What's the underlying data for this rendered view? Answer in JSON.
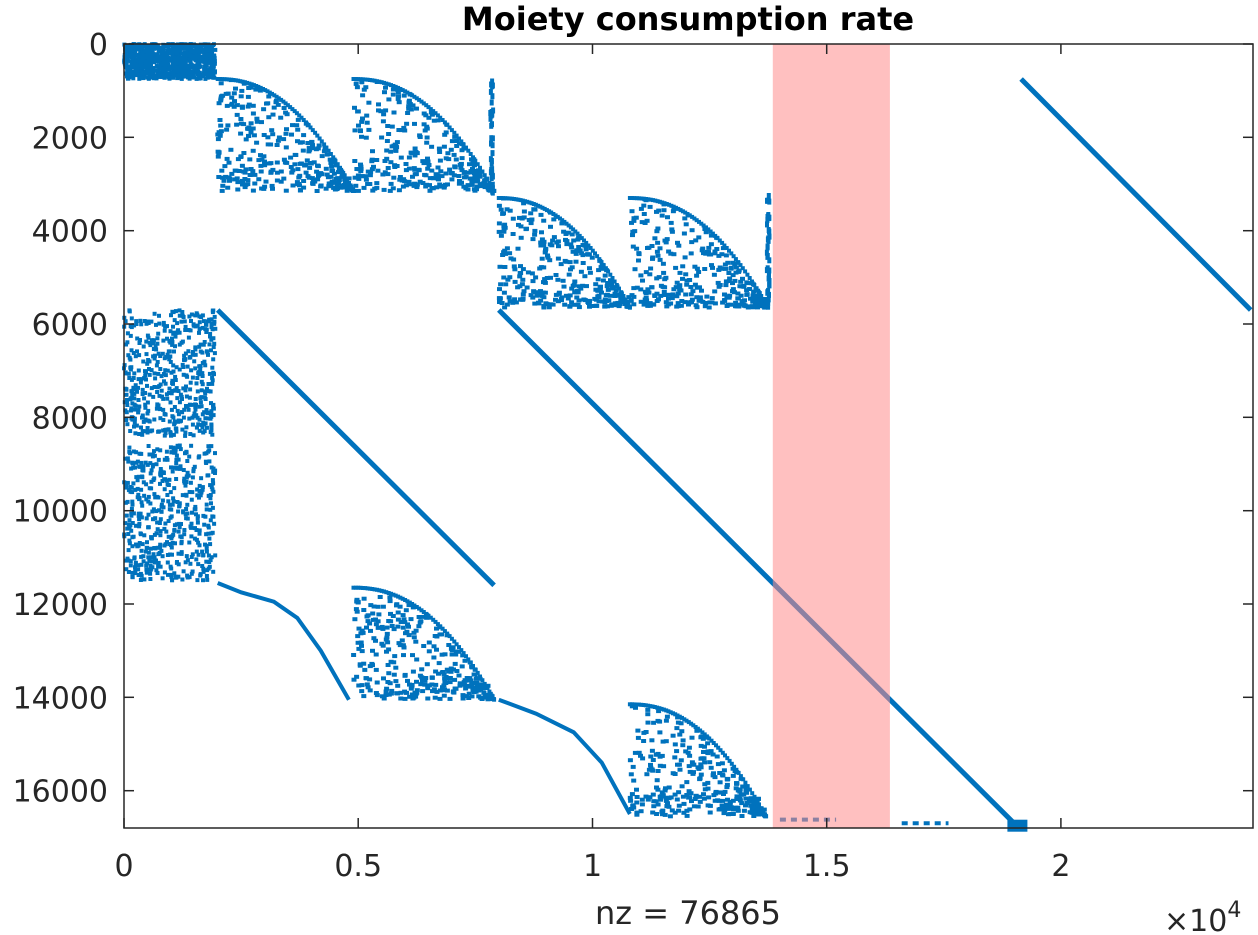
{
  "chart_data": {
    "type": "scatter",
    "subtype": "sparsity-pattern",
    "title": "Moiety consumption rate",
    "xlabel": "nz = 76865",
    "x_exponent": "×10",
    "x_exponent_power": "4",
    "xlim": [
      0,
      24100
    ],
    "ylim": [
      0,
      16800
    ],
    "y_reversed": true,
    "grid": false,
    "x_ticks": [
      0,
      5000,
      10000,
      15000,
      20000
    ],
    "x_tick_labels": [
      "0",
      "0.5",
      "1",
      "1.5",
      "2"
    ],
    "y_ticks": [
      0,
      2000,
      4000,
      6000,
      8000,
      10000,
      12000,
      14000,
      16000
    ],
    "y_tick_labels": [
      "0",
      "2000",
      "4000",
      "6000",
      "8000",
      "10000",
      "12000",
      "14000",
      "16000"
    ],
    "colors": {
      "points": "#0072bd",
      "highlight": "#ff8c8c",
      "axes": "#262626"
    },
    "highlight_band": {
      "x_start": 13850,
      "x_end": 16350,
      "opacity": 0.55
    },
    "diagonals": [
      {
        "x0": 2000,
        "y0": 5700,
        "x1": 7900,
        "y1": 11600
      },
      {
        "x0": 8000,
        "y0": 5700,
        "x1": 19000,
        "y1": 16700
      },
      {
        "x0": 19150,
        "y0": 750,
        "x1": 24050,
        "y1": 5700
      }
    ],
    "curves": [
      {
        "x": [
          2000,
          2500,
          3200,
          3700,
          4200,
          4800
        ],
        "y": [
          11550,
          11750,
          11950,
          12300,
          13000,
          14050
        ]
      },
      {
        "x": [
          8000,
          8800,
          9600,
          10200,
          10800
        ],
        "y": [
          14050,
          14350,
          14750,
          15400,
          16500
        ]
      }
    ],
    "triangles": [
      {
        "x0": 2000,
        "x1": 4900,
        "y_top": 750,
        "y_bottom": 3150
      },
      {
        "x0": 4900,
        "x1": 7900,
        "y_top": 750,
        "y_bottom": 3150
      },
      {
        "x0": 8000,
        "x1": 10800,
        "y_top": 3300,
        "y_bottom": 5650
      },
      {
        "x0": 10800,
        "x1": 13750,
        "y_top": 3300,
        "y_bottom": 5650
      },
      {
        "x0": 4900,
        "x1": 7900,
        "y_top": 11650,
        "y_bottom": 14050
      },
      {
        "x0": 10800,
        "x1": 13700,
        "y_top": 14150,
        "y_bottom": 16550
      }
    ],
    "dense_blocks": [
      {
        "x0": 0,
        "x1": 1950,
        "y0": 0,
        "y1": 750,
        "n": 900
      },
      {
        "x0": 0,
        "x1": 1950,
        "y0": 5700,
        "y1": 8400,
        "n": 500
      },
      {
        "x0": 0,
        "x1": 1950,
        "y0": 8600,
        "y1": 11500,
        "n": 500
      }
    ],
    "vertical_streaks": [
      {
        "x": 7850,
        "y0": 750,
        "y1": 3200
      },
      {
        "x": 13750,
        "y0": 3250,
        "y1": 5600
      }
    ],
    "bottom_dashes": [
      {
        "x0": 14000,
        "x1": 15200,
        "y": 16620
      },
      {
        "x0": 16600,
        "x1": 17600,
        "y": 16700
      }
    ],
    "end_blob": {
      "x": 19050,
      "y": 16750
    }
  }
}
